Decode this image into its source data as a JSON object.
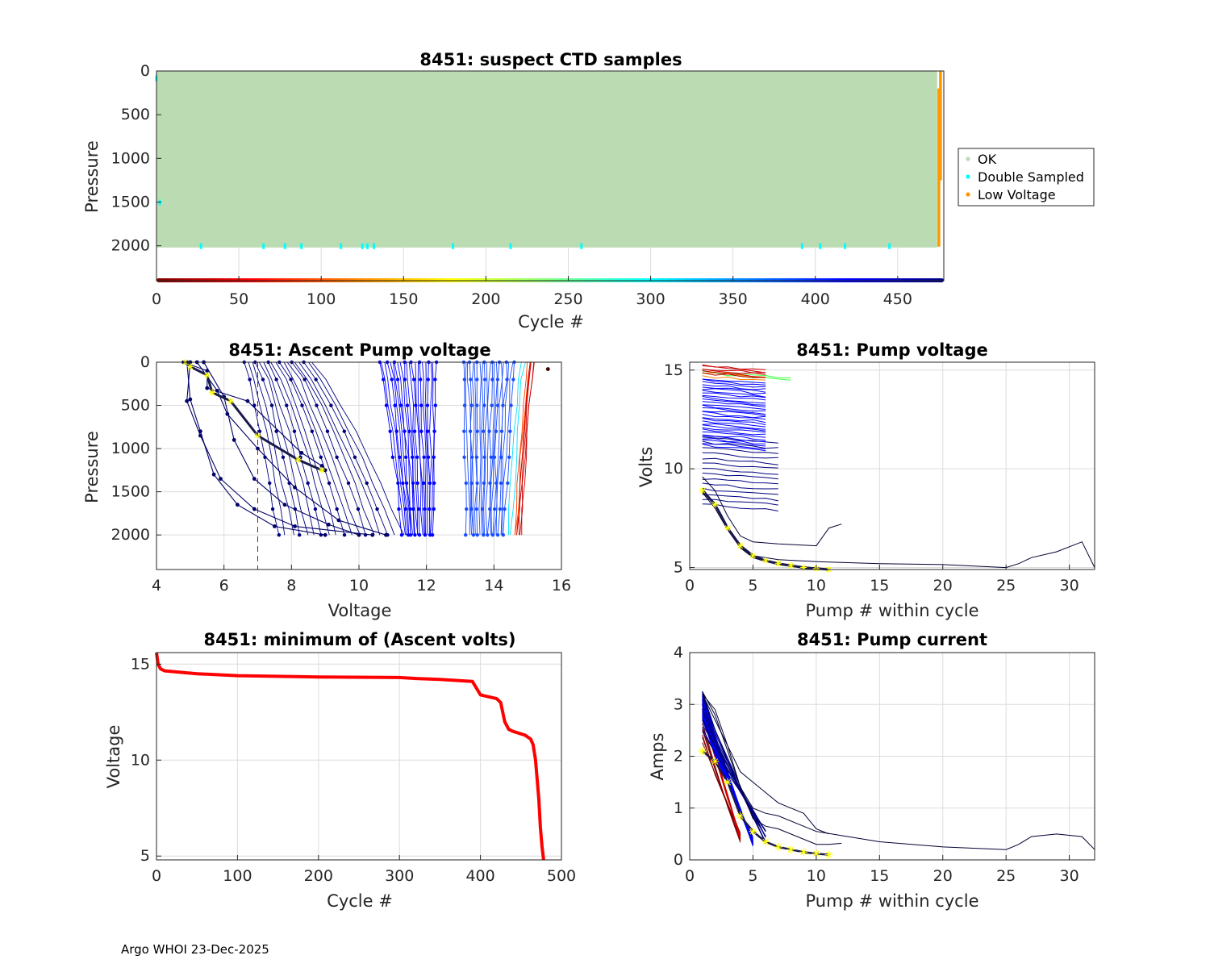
{
  "footer": "Argo WHOI 23-Dec-2025",
  "colormap": [
    "#800000",
    "#ff0000",
    "#ff8000",
    "#ffff00",
    "#80ff80",
    "#00ffff",
    "#0080ff",
    "#0000ff",
    "#000080"
  ],
  "chart_data": [
    {
      "id": "suspect",
      "type": "scatter",
      "title": "8451: suspect CTD samples",
      "xlabel": "Cycle #",
      "ylabel": "Pressure",
      "xlim": [
        0,
        478
      ],
      "ylim": [
        2400,
        0
      ],
      "xticks": [
        0,
        50,
        100,
        150,
        200,
        250,
        300,
        350,
        400,
        450
      ],
      "yticks": [
        0,
        500,
        1000,
        1500,
        2000
      ],
      "legend": {
        "location": "outside-right",
        "entries": [
          {
            "label": "OK",
            "color": "#bbdbb2"
          },
          {
            "label": "Double Sampled",
            "color": "#00ffff"
          },
          {
            "label": "Low Voltage",
            "color": "#ff9900"
          }
        ]
      },
      "ok_region": {
        "cycles": [
          0,
          474
        ],
        "pressure": [
          0,
          2020
        ]
      },
      "low_voltage": [
        {
          "cycle": 476,
          "p": [
            0,
            1250
          ]
        },
        {
          "cycle": 475,
          "p": [
            200,
            2010
          ]
        }
      ],
      "double_sampled": [
        {
          "cycle": 0,
          "p": 80
        },
        {
          "cycle": 2,
          "p": 1500
        },
        {
          "cycle": 27,
          "p": 2000
        },
        {
          "cycle": 65,
          "p": 2000
        },
        {
          "cycle": 78,
          "p": 2000
        },
        {
          "cycle": 88,
          "p": 2000
        },
        {
          "cycle": 112,
          "p": 2000
        },
        {
          "cycle": 125,
          "p": 2000
        },
        {
          "cycle": 128,
          "p": 2000
        },
        {
          "cycle": 132,
          "p": 2000
        },
        {
          "cycle": 180,
          "p": 2000
        },
        {
          "cycle": 215,
          "p": 2000
        },
        {
          "cycle": 258,
          "p": 2000
        },
        {
          "cycle": 392,
          "p": 2000
        },
        {
          "cycle": 403,
          "p": 2000
        },
        {
          "cycle": 418,
          "p": 2000
        },
        {
          "cycle": 445,
          "p": 2000
        }
      ],
      "colorbar": {
        "range": [
          0,
          478
        ]
      }
    },
    {
      "id": "ascent",
      "type": "line",
      "title": "8451: Ascent Pump voltage",
      "xlabel": "Voltage",
      "ylabel": "Pressure",
      "xlim": [
        4,
        16
      ],
      "ylim": [
        2400,
        0
      ],
      "xticks": [
        4,
        6,
        8,
        10,
        12,
        14,
        16
      ],
      "yticks": [
        0,
        500,
        1000,
        1500,
        2000
      ],
      "reference_line": {
        "x": 7,
        "color": "#cc0000"
      },
      "bands": [
        {
          "color": "#000080",
          "x_surface": [
            6.6,
            8.6
          ],
          "x_bottom": [
            7.6,
            11.3
          ],
          "count": 18
        },
        {
          "color": "#0000ff",
          "x_surface": [
            10.6,
            12.3
          ],
          "x_bottom": [
            11.3,
            12.2
          ],
          "count": 22
        },
        {
          "color": "#1a4dff",
          "x_surface": [
            13.1,
            14.6
          ],
          "x_bottom": [
            13.2,
            14.3
          ],
          "count": 22
        },
        {
          "color": "#00e0ff",
          "x_surface": [
            14.8,
            14.9
          ],
          "x_bottom": [
            14.4,
            14.5
          ],
          "count": 2
        },
        {
          "color": "#ff4000",
          "x_surface": [
            15.0,
            15.1
          ],
          "x_bottom": [
            14.6,
            14.7
          ],
          "count": 3
        },
        {
          "color": "#cc0000",
          "x_surface": [
            15.1,
            15.2
          ],
          "x_bottom": [
            14.7,
            14.8
          ],
          "count": 4
        }
      ],
      "failing_profiles": [
        {
          "v": [
            4.8,
            5.5,
            5.5,
            6.7,
            8.3,
            8.9,
            9.0
          ],
          "p": [
            0,
            100,
            300,
            450,
            1050,
            1200,
            1250
          ]
        },
        {
          "v": [
            4.9,
            5.0,
            5.3,
            5.7,
            6.4,
            7.5,
            9.0
          ],
          "p": [
            0,
            430,
            800,
            1300,
            1650,
            1900,
            2000
          ]
        },
        {
          "v": [
            5.0,
            4.9,
            5.3,
            5.9,
            6.9,
            8.1,
            10.4
          ],
          "p": [
            0,
            450,
            850,
            1350,
            1700,
            1900,
            2000
          ]
        },
        {
          "v": [
            5.4,
            6.0,
            6.3,
            6.9,
            7.8,
            9.1,
            10.0
          ],
          "p": [
            0,
            400,
            900,
            1350,
            1650,
            1880,
            2000
          ]
        },
        {
          "v": [
            5.2,
            5.8,
            6.1,
            7.0,
            8.1,
            9.4,
            10.8
          ],
          "p": [
            0,
            330,
            600,
            1000,
            1450,
            1830,
            2000
          ]
        }
      ],
      "lowest_profile": {
        "v": [
          4.85,
          5.0,
          5.5,
          5.65,
          6.2,
          7.0,
          8.2,
          8.9
        ],
        "p": [
          0,
          50,
          150,
          350,
          450,
          850,
          1130,
          1250
        ]
      },
      "outlier": {
        "v": 15.6,
        "p": 80
      }
    },
    {
      "id": "pumpv",
      "type": "line",
      "title": "8451: Pump voltage",
      "xlabel": "Pump # within cycle",
      "ylabel": "Volts",
      "xlim": [
        0,
        32
      ],
      "ylim": [
        4.9,
        15.4
      ],
      "xticks": [
        0,
        5,
        10,
        15,
        20,
        25,
        30
      ],
      "yticks": [
        5,
        10,
        15
      ],
      "healthy_groups": [
        {
          "color": "#cc0000",
          "v_range": [
            14.85,
            15.25
          ],
          "n_pumps": 6,
          "count": 6
        },
        {
          "color": "#ff8000",
          "v_range": [
            14.7,
            14.9
          ],
          "n_pumps": 6,
          "count": 2
        },
        {
          "color": "#40ff40",
          "v_range": [
            14.85,
            14.95
          ],
          "n_pumps": 8,
          "count": 2
        },
        {
          "color": "#0000ff",
          "v_range": [
            11.2,
            14.6
          ],
          "n_pumps": 6,
          "count": 32
        },
        {
          "color": "#000080",
          "v_range": [
            8.2,
            11.6
          ],
          "n_pumps": 7,
          "count": 14
        }
      ],
      "failing_curves": [
        {
          "x": [
            1,
            2,
            3,
            4,
            5,
            6,
            7,
            10,
            11,
            12
          ],
          "y": [
            9.6,
            8.9,
            7.6,
            6.6,
            6.3,
            6.25,
            6.2,
            6.1,
            7.0,
            7.2
          ]
        },
        {
          "x": [
            1,
            2,
            3,
            4,
            5,
            7,
            10,
            15,
            20,
            25,
            26,
            27,
            29,
            31,
            32
          ],
          "y": [
            9.0,
            8.2,
            7.0,
            6.0,
            5.6,
            5.4,
            5.3,
            5.2,
            5.15,
            5.0,
            5.2,
            5.5,
            5.8,
            6.3,
            5.0
          ]
        },
        {
          "x": [
            1,
            2,
            3,
            4,
            5,
            6,
            7,
            8,
            9,
            10,
            11
          ],
          "y": [
            8.8,
            8.0,
            6.9,
            6.0,
            5.5,
            5.3,
            5.15,
            5.05,
            5.0,
            4.95,
            4.9
          ]
        }
      ],
      "markers": {
        "x": [
          1,
          2,
          3,
          4,
          5,
          6,
          7,
          8,
          9,
          10,
          11
        ],
        "y": [
          8.9,
          8.2,
          7.0,
          6.1,
          5.6,
          5.35,
          5.2,
          5.1,
          5.0,
          4.95,
          4.9
        ]
      }
    },
    {
      "id": "minv",
      "type": "line",
      "title": "8451: minimum of (Ascent volts)",
      "xlabel": "Cycle #",
      "ylabel": "Voltage",
      "xlim": [
        0,
        500
      ],
      "ylim": [
        4.8,
        15.6
      ],
      "xticks": [
        0,
        100,
        200,
        300,
        400,
        500
      ],
      "yticks": [
        5,
        10,
        15
      ],
      "x": [
        0,
        2,
        5,
        10,
        50,
        100,
        200,
        300,
        320,
        350,
        390,
        400,
        420,
        425,
        430,
        435,
        440,
        455,
        462,
        465,
        468,
        470,
        472,
        474,
        476,
        478
      ],
      "y": [
        15.6,
        15.0,
        14.75,
        14.65,
        14.5,
        14.4,
        14.33,
        14.3,
        14.25,
        14.2,
        14.1,
        13.4,
        13.2,
        13.0,
        12.0,
        11.6,
        11.5,
        11.3,
        11.1,
        10.8,
        10.0,
        9.0,
        8.0,
        6.5,
        5.5,
        4.8
      ]
    },
    {
      "id": "pumpc",
      "type": "line",
      "title": "8451: Pump current",
      "xlabel": "Pump # within cycle",
      "ylabel": "Amps",
      "xlim": [
        0,
        32
      ],
      "ylim": [
        0,
        4
      ],
      "xticks": [
        0,
        5,
        10,
        15,
        20,
        25,
        30
      ],
      "yticks": [
        0,
        1,
        2,
        3,
        4
      ],
      "healthy_groups": [
        {
          "color": "#800000",
          "start": [
            2.3,
            2.6
          ],
          "end": [
            0.5,
            0.35
          ],
          "n_pumps": 4,
          "count": 6
        },
        {
          "color": "#cc0000",
          "start": [
            2.8,
            3.1
          ],
          "end": [
            0.5,
            0.4
          ],
          "n_pumps": 4,
          "count": 8
        },
        {
          "color": "#0000ff",
          "start": [
            2.7,
            3.25
          ],
          "end": [
            0.4,
            0.3
          ],
          "n_pumps": 5,
          "count": 32
        },
        {
          "color": "#000080",
          "start": [
            2.5,
            3.25
          ],
          "end": [
            0.6,
            0.3
          ],
          "n_pumps": 6,
          "count": 12
        }
      ],
      "failing_curves": [
        {
          "x": [
            1,
            2,
            3,
            4,
            5,
            6,
            7,
            10,
            11,
            12
          ],
          "y": [
            3.2,
            2.9,
            2.2,
            1.4,
            0.8,
            0.65,
            0.6,
            0.3,
            0.3,
            0.32
          ]
        },
        {
          "x": [
            1,
            2,
            3,
            4,
            5,
            6,
            7,
            10,
            15,
            20,
            25,
            26,
            27,
            29,
            31,
            32
          ],
          "y": [
            3.25,
            2.8,
            2.1,
            1.4,
            1.0,
            0.9,
            0.85,
            0.55,
            0.35,
            0.25,
            0.2,
            0.3,
            0.45,
            0.5,
            0.45,
            0.2
          ]
        },
        {
          "x": [
            1,
            2,
            3,
            4,
            5,
            6,
            7,
            8,
            9,
            10,
            11
          ],
          "y": [
            3.2,
            2.7,
            2.2,
            1.7,
            1.5,
            1.3,
            1.1,
            1.0,
            0.9,
            0.6,
            0.5
          ]
        }
      ],
      "markers": {
        "x": [
          1,
          2,
          3,
          4,
          5,
          6,
          7,
          8,
          9,
          10,
          11
        ],
        "y": [
          2.1,
          1.9,
          1.5,
          0.85,
          0.55,
          0.35,
          0.25,
          0.2,
          0.15,
          0.12,
          0.1
        ]
      }
    }
  ]
}
